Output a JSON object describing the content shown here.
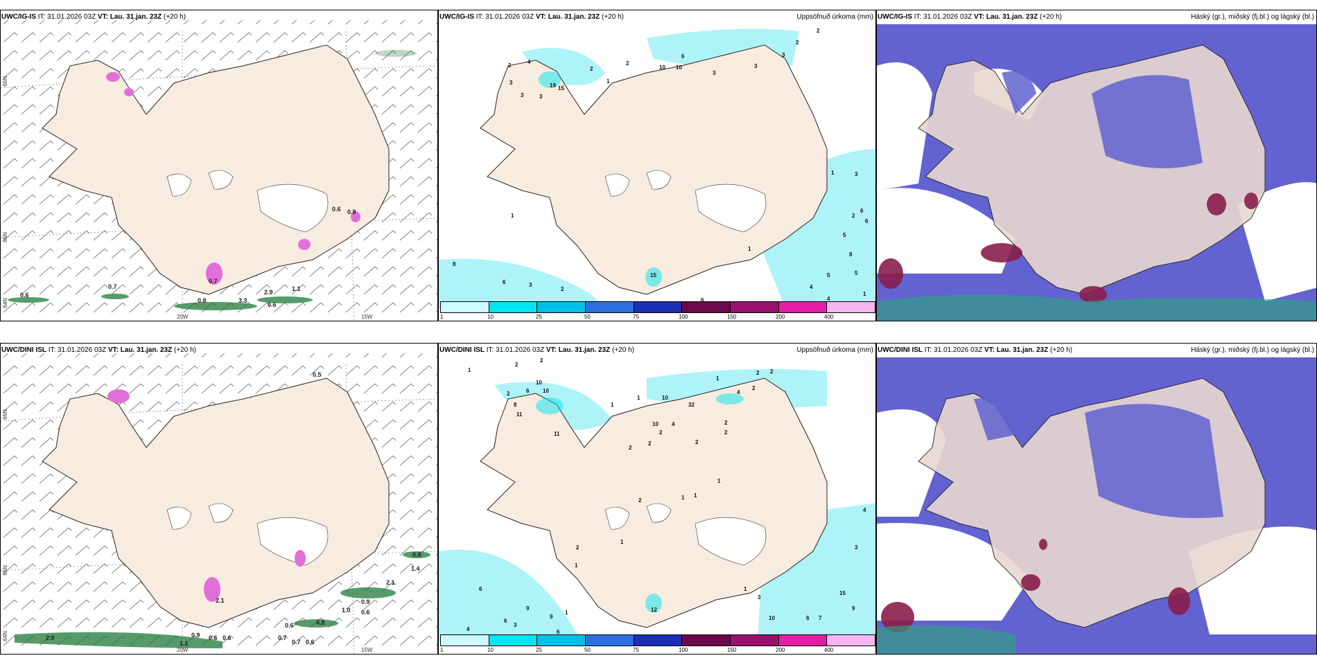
{
  "rows": [
    {
      "model": "UWC/IG-IS",
      "it_label": "IT:",
      "it_value": "31.01.2026 03Z",
      "vt_label": "VT: Lau. 31.jan. 23Z",
      "lead": "(+20 h)",
      "precip_title": "Uppsöfnuð úrkoma (mm)",
      "cloud_title": "Háský (gr.), miðský (fj.bl.) og lágský (bl.)",
      "lat_labels": [
        "66N",
        "65N",
        "64N"
      ],
      "lon_labels": [
        "20W",
        "15W"
      ],
      "wind_numbers": [
        "0.6",
        "0.7",
        "0.8",
        "0.6",
        "2.9",
        "1.1",
        "3.3",
        "0.6",
        "0.7",
        "0.8"
      ],
      "precip_numbers": [
        "2",
        "4",
        "3",
        "3",
        "3",
        "19",
        "15",
        "2",
        "2",
        "1",
        "10",
        "10",
        "6",
        "3",
        "3",
        "2",
        "2",
        "3",
        "1",
        "1",
        "2",
        "3",
        "5",
        "6",
        "6",
        "8",
        "5",
        "4",
        "5",
        "8",
        "6",
        "4",
        "3",
        "2",
        "1",
        "6",
        "15",
        "1"
      ]
    },
    {
      "model": "UWC/DINI ISL",
      "it_label": "IT:",
      "it_value": "31.01.2026 03Z",
      "vt_label": "VT: Lau. 31.jan. 23Z",
      "lead": "(+20 h)",
      "precip_title": "Uppsöfnuð úrkoma (mm)",
      "cloud_title": "Háský (gr.), miðský (fj.bl.) og lágský (bl.)",
      "lat_labels": [
        "66N",
        "65N",
        "64N"
      ],
      "lon_labels": [
        "20W",
        "15W"
      ],
      "wind_numbers": [
        "0.5",
        "0.8",
        "1.4",
        "2.1",
        "0.9",
        "1.0",
        "0.6",
        "0.6",
        "4.8",
        "0.7",
        "0.7",
        "0.6",
        "0.9",
        "0.6",
        "0.6",
        "1.1",
        "2.0",
        "2.1"
      ],
      "precip_numbers": [
        "1",
        "2",
        "2",
        "10",
        "6",
        "8",
        "11",
        "2",
        "10",
        "11",
        "1",
        "1",
        "10",
        "32",
        "4",
        "2",
        "1",
        "2",
        "2",
        "10",
        "4",
        "2",
        "2",
        "2",
        "2",
        "2",
        "2",
        "1",
        "1",
        "1",
        "2",
        "2",
        "1",
        "1",
        "6",
        "9",
        "6",
        "3",
        "9",
        "1",
        "4",
        "6",
        "12",
        "1",
        "3",
        "10",
        "3",
        "6",
        "7",
        "15",
        "9",
        "4"
      ]
    }
  ],
  "colorbar": {
    "labels": [
      "1",
      "10",
      "25",
      "50",
      "75",
      "100",
      "150",
      "200",
      "400"
    ],
    "colors": [
      "#cbfbff",
      "#00e5f0",
      "#00c0e8",
      "#2d6fe0",
      "#1a2fb8",
      "#6b0a4a",
      "#9a1070",
      "#e61ca8",
      "#f6b5f0"
    ]
  },
  "colors": {
    "land": "#f8ece0",
    "cloud_mid": "#6262d0",
    "cloud_high": "#8a1e4a",
    "precip_light": "#aef3f7",
    "wind_green": "#1f7a3a"
  }
}
